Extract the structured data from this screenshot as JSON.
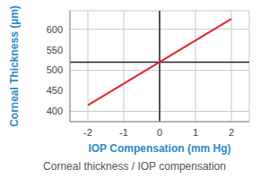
{
  "chart_data": {
    "type": "line",
    "title": "Corneal thickness / IOP compensation",
    "x_label": "IOP Compensation (mm Hg)",
    "y_label": "Corneal Thickness (µm)",
    "x": [
      -2,
      2
    ],
    "values": [
      415,
      625
    ],
    "color": "#e0262b",
    "xlim": [
      -2.5,
      2.5
    ],
    "xticks": [
      -2,
      -1,
      0,
      1,
      2
    ],
    "ylim": [
      375,
      645
    ],
    "yticks": [
      400,
      450,
      500,
      550,
      600
    ],
    "grid": true,
    "reference_lines": {
      "x": [
        0
      ],
      "y": [
        520
      ],
      "color": "#222222"
    }
  }
}
